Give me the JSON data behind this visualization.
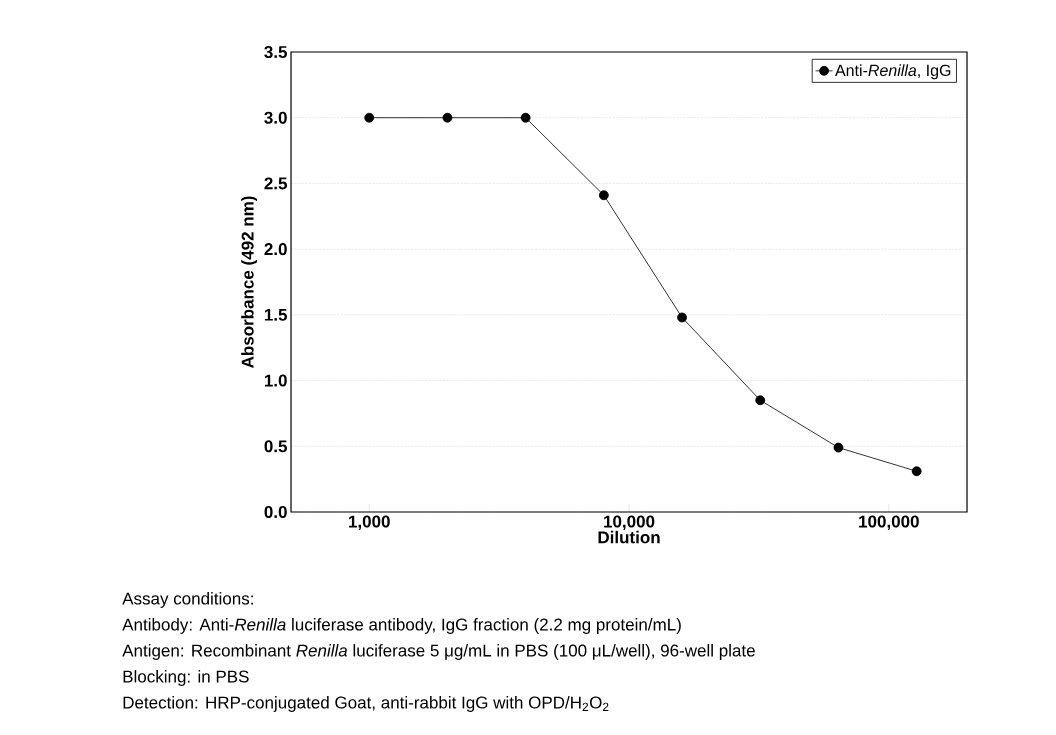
{
  "chart_data": {
    "type": "line",
    "xlabel": "Dilution",
    "ylabel": "Absorbance (492 nm)",
    "x": [
      1000,
      2000,
      4000,
      8000,
      16000,
      32000,
      64000,
      128000
    ],
    "series": [
      {
        "name": "Anti-*Renilla*, IgG",
        "color": "#000000",
        "values": [
          3.0,
          3.0,
          3.0,
          2.41,
          1.48,
          0.85,
          0.49,
          0.31
        ]
      }
    ],
    "log": "x",
    "xlim": [
      500,
      200000
    ],
    "xticks": [
      {
        "value": 1000,
        "label": "1,000"
      },
      {
        "value": 10000,
        "label": "10,000"
      },
      {
        "value": 100000,
        "label": "100,000"
      }
    ],
    "ylim": [
      0,
      3.5
    ],
    "yticks": [
      {
        "value": 0,
        "label": "0.0"
      },
      {
        "value": 0.5,
        "label": "0.5"
      },
      {
        "value": 1,
        "label": "1.0"
      },
      {
        "value": 1.5,
        "label": "1.5"
      },
      {
        "value": 2,
        "label": "2.0"
      },
      {
        "value": 2.5,
        "label": "2.5"
      },
      {
        "value": 3,
        "label": "3.0"
      },
      {
        "value": 3.5,
        "label": "3.5"
      }
    ],
    "grid": "y",
    "legend": "top right",
    "marker": "circle",
    "line_style": "solid",
    "annotations": [
      "Assay conditions:",
      "Antibody: Anti-*Renilla* luciferase antibody, IgG fraction (2.2 mg protein/mL)",
      "Antigen: Recombinant *Renilla* luciferase 5 μg/mL in PBS (100 μL/well), 96-well plate",
      "Blocking: in PBS",
      "Detection: HRP-conjugated Goat, anti-rabbit IgG with OPD/H$_{2}$O$_{2}$"
    ]
  }
}
